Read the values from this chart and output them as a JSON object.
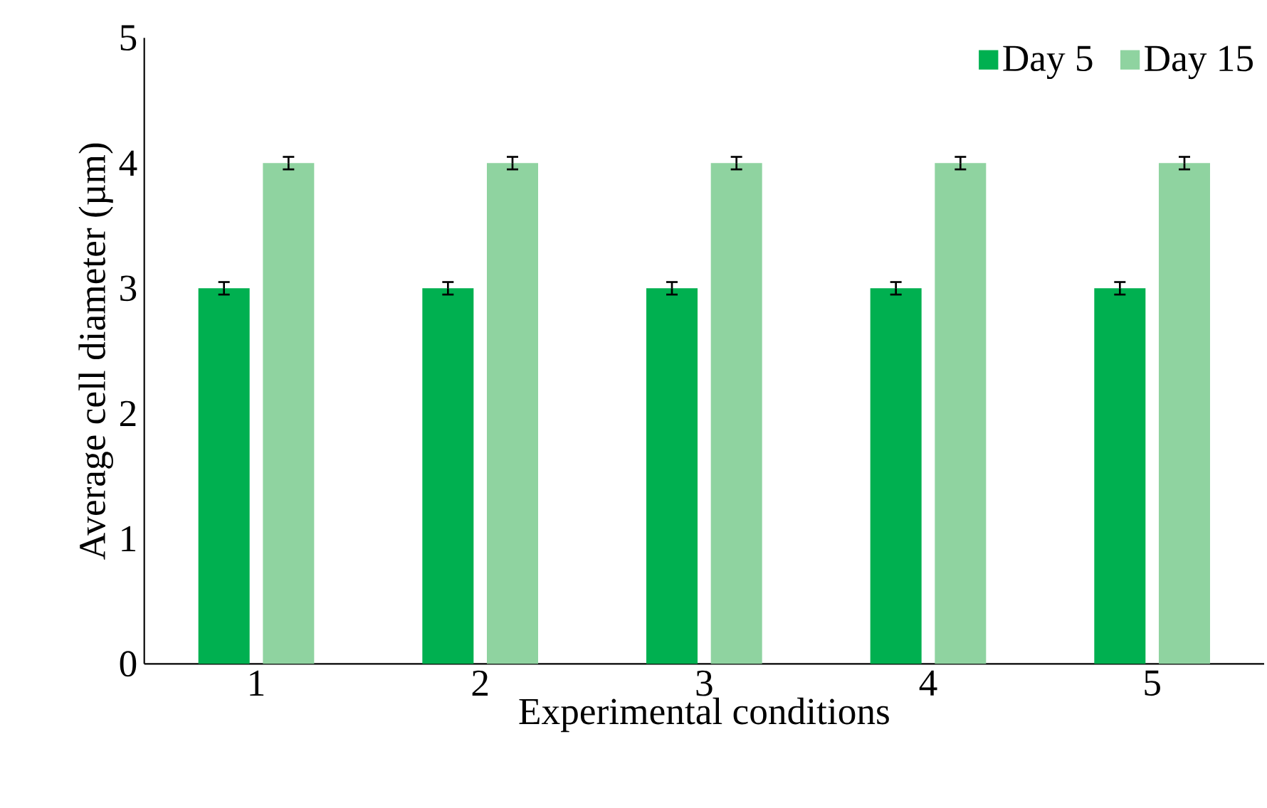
{
  "chart_data": {
    "type": "bar",
    "xlabel": "Experimental conditions",
    "ylabel": "Average cell diameter (µm)",
    "categories": [
      "1",
      "2",
      "3",
      "4",
      "5"
    ],
    "series": [
      {
        "name": "Day 5",
        "color": "#00b050",
        "values": [
          3,
          3,
          3,
          3,
          3
        ],
        "errors": [
          0.05,
          0.05,
          0.05,
          0.05,
          0.05
        ]
      },
      {
        "name": "Day 15",
        "color": "#8fd3a0",
        "values": [
          4,
          4,
          4,
          4,
          4
        ],
        "errors": [
          0.05,
          0.05,
          0.05,
          0.05,
          0.05
        ]
      }
    ],
    "ylim": [
      0,
      5
    ],
    "yticks": [
      0,
      1,
      2,
      3,
      4,
      5
    ],
    "legend": "top right",
    "grid": false
  }
}
